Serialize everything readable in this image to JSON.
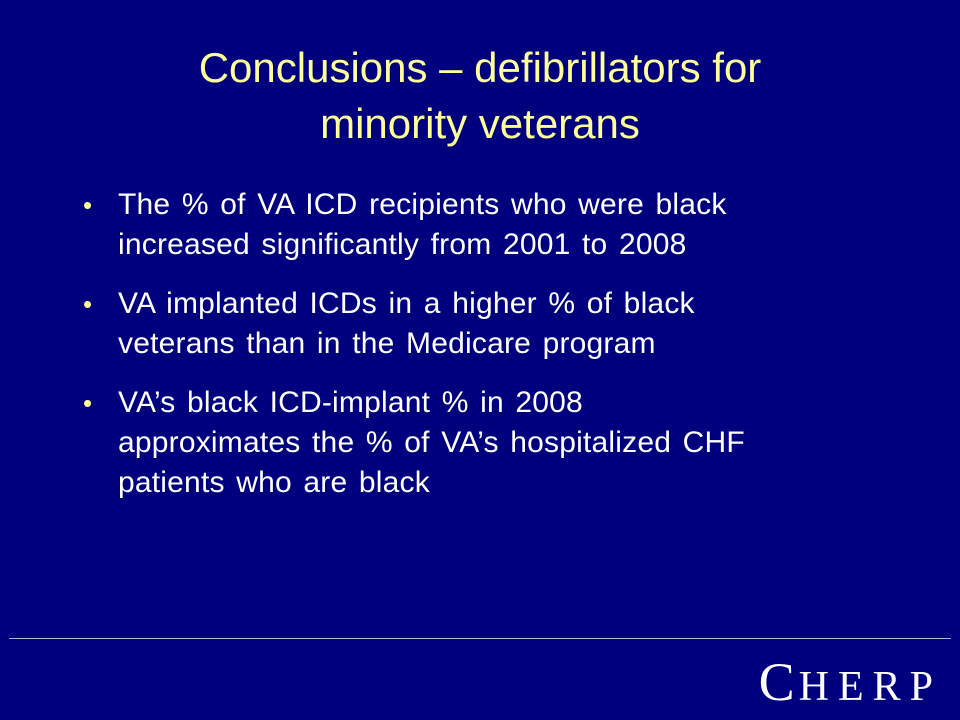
{
  "slide": {
    "title_lines": [
      "Conclusions – defibrillators for",
      "minority veterans"
    ],
    "bullets": [
      {
        "lines": [
          "The % of VA ICD recipients who were black",
          "increased significantly from 2001 to 2008"
        ]
      },
      {
        "lines": [
          "VA implanted ICDs in a higher % of black",
          "veterans than in the Medicare program"
        ]
      },
      {
        "lines": [
          "VA’s black ICD-implant % in 2008",
          "approximates the % of VA’s hospitalized CHF",
          "patients who are black"
        ]
      }
    ],
    "bullet_symbol": "•",
    "logo": {
      "first_letter": "C",
      "rest": "HERP"
    }
  },
  "colors": {
    "background": "#00007f",
    "title": "#ffff99",
    "body_text": "#ffffff",
    "divider": "#b4b4d8"
  }
}
